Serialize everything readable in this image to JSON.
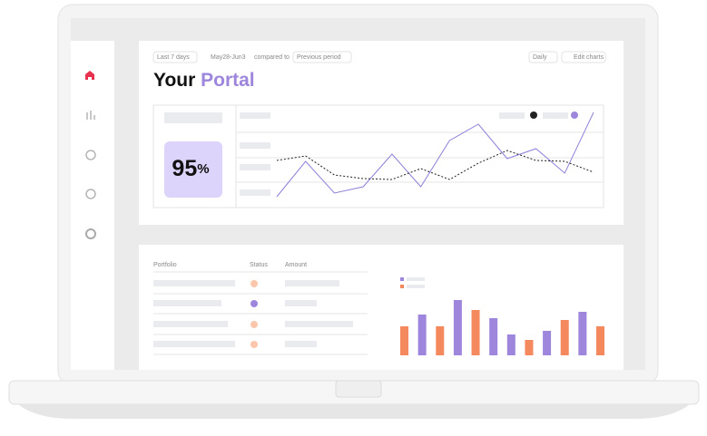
{
  "toolbar": {
    "range": "Last 7 days",
    "dates": "May28-Jun3",
    "compare_label": "compared to",
    "compare": "Previous period",
    "interval": "Daily",
    "edit": "Edit charts"
  },
  "title": {
    "first": "Your",
    "second": "Portal"
  },
  "kpi": {
    "value": "95",
    "unit": "%"
  },
  "line_chart": {
    "series": [
      {
        "color": "#8f7fd8",
        "values": [
          13,
          52,
          17,
          24,
          60,
          24,
          75,
          93,
          55,
          66,
          39,
          106
        ]
      },
      {
        "color": "#222222",
        "values": [
          53,
          58,
          37,
          33,
          32,
          44,
          32,
          50,
          64,
          53,
          52,
          40
        ]
      }
    ]
  },
  "table": {
    "headers": [
      "Portfolio",
      "Status",
      "Amount"
    ]
  },
  "bar_chart": {
    "bars": [
      {
        "color": "#f5895e",
        "value": 32
      },
      {
        "color": "#9d86dc",
        "value": 45
      },
      {
        "color": "#f5895e",
        "value": 32
      },
      {
        "color": "#9d86dc",
        "value": 61
      },
      {
        "color": "#f5895e",
        "value": 50
      },
      {
        "color": "#9d86dc",
        "value": 41
      },
      {
        "color": "#9d86dc",
        "value": 23
      },
      {
        "color": "#f5895e",
        "value": 17
      },
      {
        "color": "#9d86dc",
        "value": 27
      },
      {
        "color": "#f5895e",
        "value": 39
      },
      {
        "color": "#9d86dc",
        "value": 48
      },
      {
        "color": "#f5895e",
        "value": 32
      }
    ]
  }
}
